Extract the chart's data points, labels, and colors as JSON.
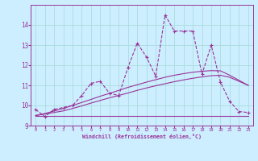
{
  "x": [
    0,
    1,
    2,
    3,
    4,
    5,
    6,
    7,
    8,
    9,
    10,
    11,
    12,
    13,
    14,
    15,
    16,
    17,
    18,
    19,
    20,
    21,
    22,
    23
  ],
  "y_jagged": [
    9.8,
    9.45,
    9.8,
    9.9,
    10.0,
    10.5,
    11.1,
    11.2,
    10.6,
    10.5,
    11.9,
    13.1,
    12.4,
    11.45,
    14.5,
    13.7,
    13.7,
    13.7,
    11.55,
    13.0,
    11.15,
    10.2,
    9.7,
    9.65
  ],
  "y_flat": [
    9.5,
    9.5,
    9.5,
    9.5,
    9.5,
    9.5,
    9.5,
    9.5,
    9.5,
    9.5,
    9.5,
    9.5,
    9.5,
    9.5,
    9.5,
    9.5,
    9.5,
    9.5,
    9.5,
    9.5,
    9.5,
    9.5,
    9.5,
    9.5
  ],
  "y_linear1": [
    9.5,
    9.57,
    9.65,
    9.73,
    9.85,
    9.98,
    10.12,
    10.25,
    10.38,
    10.5,
    10.62,
    10.75,
    10.87,
    10.98,
    11.08,
    11.18,
    11.27,
    11.35,
    11.42,
    11.48,
    11.5,
    11.4,
    11.2,
    11.0
  ],
  "y_linear2": [
    9.5,
    9.6,
    9.72,
    9.85,
    10.0,
    10.15,
    10.3,
    10.46,
    10.6,
    10.75,
    10.9,
    11.03,
    11.16,
    11.28,
    11.4,
    11.5,
    11.58,
    11.65,
    11.7,
    11.73,
    11.72,
    11.5,
    11.25,
    11.0
  ],
  "line_color": "#993399",
  "bg_color": "#cceeff",
  "grid_color": "#aadddd",
  "xlabel": "Windchill (Refroidissement éolien,°C)",
  "ylim": [
    9.0,
    15.0
  ],
  "xlim": [
    -0.5,
    23.5
  ],
  "yticks": [
    9,
    10,
    11,
    12,
    13,
    14
  ],
  "xticks": [
    0,
    1,
    2,
    3,
    4,
    5,
    6,
    7,
    8,
    9,
    10,
    11,
    12,
    13,
    14,
    15,
    16,
    17,
    18,
    19,
    20,
    21,
    22,
    23
  ]
}
